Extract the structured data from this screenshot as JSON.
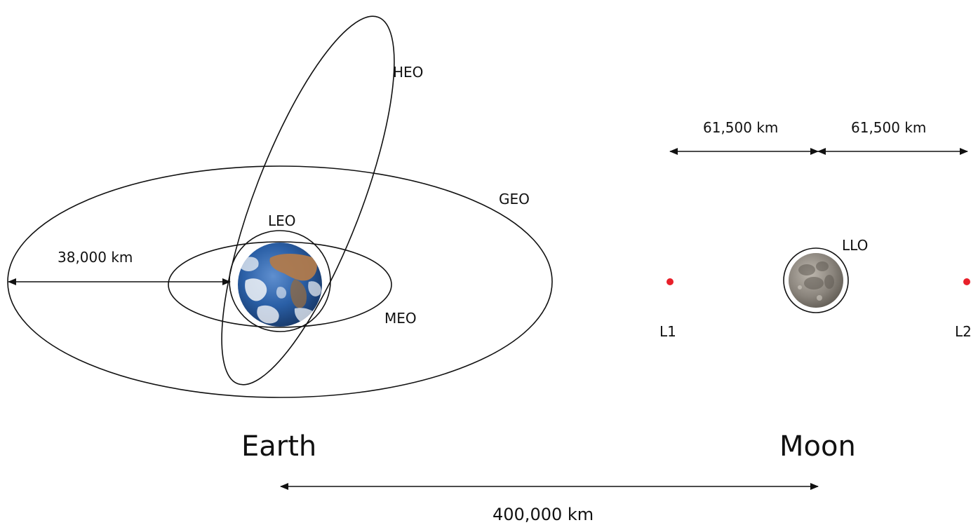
{
  "labels": {
    "heo": "HEO",
    "geo": "GEO",
    "leo": "LEO",
    "meo": "MEO",
    "llo": "LLO",
    "l1": "L1",
    "l2": "L2",
    "earth": "Earth",
    "moon": "Moon"
  },
  "distances": {
    "geo_radius": "38,000 km",
    "l1_to_moon": "61,500 km",
    "moon_to_l2": "61,500 km",
    "earth_to_moon": "400,000 km"
  },
  "colors": {
    "line": "#111111",
    "lagrange_point": "#e8202a",
    "ocean": "#2a5fa6",
    "cloud": "#f2f4f7",
    "land": "#b07a4c",
    "moon_surface": "#8a847c"
  }
}
